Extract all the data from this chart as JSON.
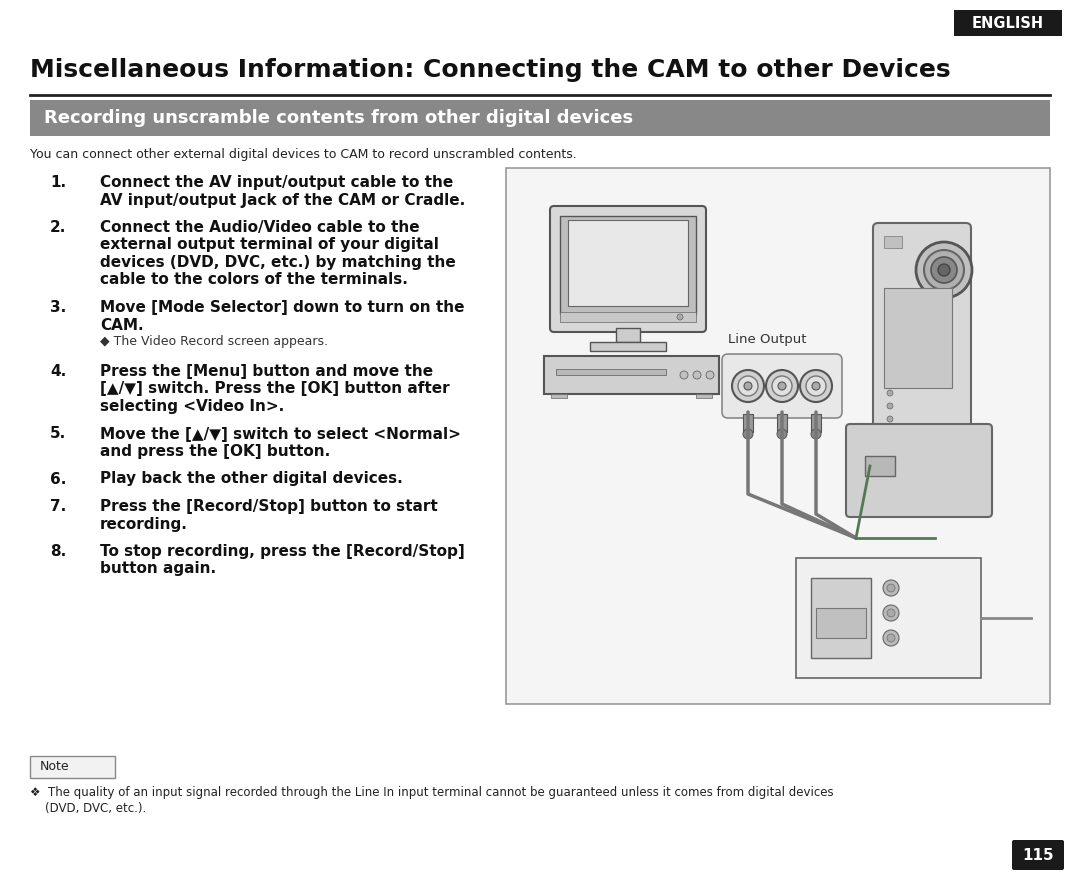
{
  "page_bg": "#ffffff",
  "english_badge_bg": "#1a1a1a",
  "english_badge_text": "ENGLISH",
  "english_badge_color": "#ffffff",
  "main_title": "Miscellaneous Information: Connecting the CAM to other Devices",
  "section_header_bg": "#888888",
  "section_header_text": "Recording unscramble contents from other digital devices",
  "section_header_color": "#ffffff",
  "intro_text": "You can connect other external digital devices to CAM to record unscrambled contents.",
  "steps": [
    {
      "num": "1.",
      "lines": [
        "Connect the AV input/output cable to the",
        "AV input/output Jack of the CAM or Cradle."
      ],
      "sub": []
    },
    {
      "num": "2.",
      "lines": [
        "Connect the Audio/Video cable to the",
        "external output terminal of your digital",
        "devices (DVD, DVC, etc.) by matching the",
        "cable to the colors of the terminals."
      ],
      "sub": []
    },
    {
      "num": "3.",
      "lines": [
        "Move [Mode Selector] down to turn on the",
        "CAM."
      ],
      "sub": [
        "◆ The Video Record screen appears."
      ]
    },
    {
      "num": "4.",
      "lines": [
        "Press the [Menu] button and move the",
        "[▲/▼] switch. Press the [OK] button after",
        "selecting <Video In>."
      ],
      "sub": []
    },
    {
      "num": "5.",
      "lines": [
        "Move the [▲/▼] switch to select <Normal>",
        "and press the [OK] button."
      ],
      "sub": []
    },
    {
      "num": "6.",
      "lines": [
        "Play back the other digital devices."
      ],
      "sub": []
    },
    {
      "num": "7.",
      "lines": [
        "Press the [Record/Stop] button to start",
        "recording."
      ],
      "sub": []
    },
    {
      "num": "8.",
      "lines": [
        "To stop recording, press the [Record/Stop]",
        "button again."
      ],
      "sub": []
    }
  ],
  "note_box_text": "Note",
  "note_text_1": "❖  The quality of an input signal recorded through the Line In input terminal cannot be guaranteed unless it comes from digital devices",
  "note_text_2": "    (DVD, DVC, etc.).",
  "page_num": "115",
  "page_num_bg": "#1a1a1a",
  "page_num_color": "#ffffff",
  "line_output_label": "Line Output"
}
